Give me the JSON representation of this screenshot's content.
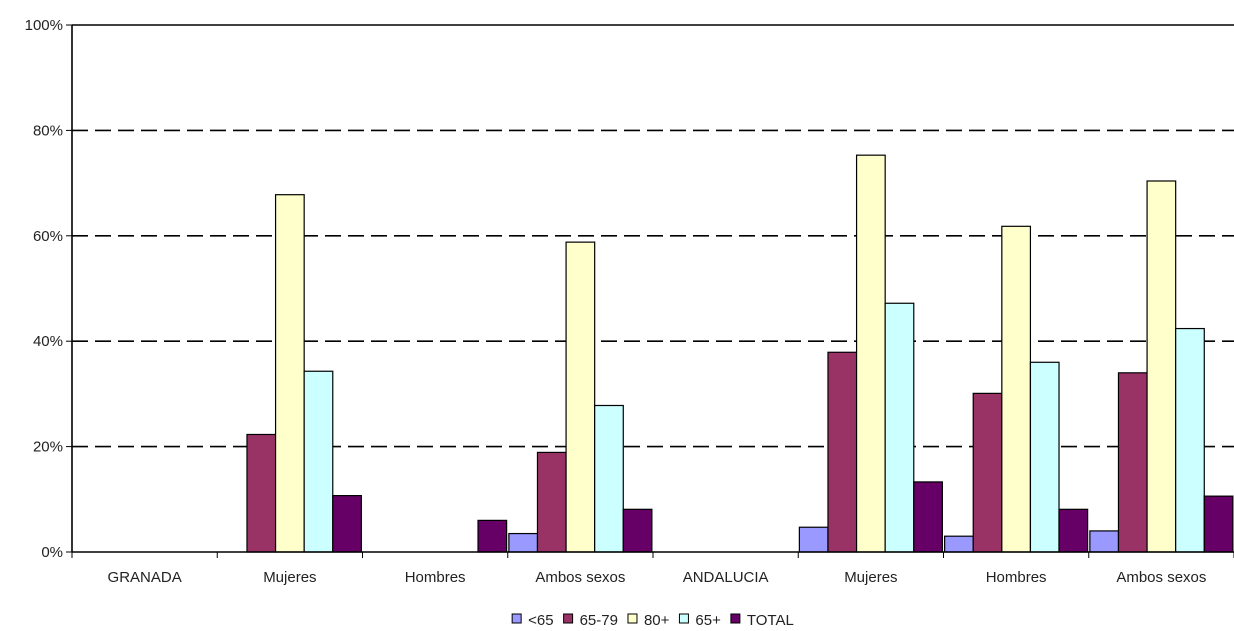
{
  "chart_data": {
    "type": "bar",
    "title": "",
    "xlabel": "",
    "ylabel": "",
    "ylim": [
      0,
      100
    ],
    "y_ticks": [
      "0%",
      "20%",
      "40%",
      "60%",
      "80%",
      "100%"
    ],
    "grid": "horizontal dashed",
    "legend_position": "bottom",
    "categories": [
      "GRANADA",
      "Mujeres",
      "Hombres",
      "Ambos sexos",
      "ANDALUCIA",
      "Mujeres",
      "Hombres",
      "Ambos sexos"
    ],
    "series": [
      {
        "name": "<65",
        "color": "#9999ff",
        "values": [
          0,
          0,
          0,
          3.5,
          0,
          4.7,
          3.0,
          4.0
        ]
      },
      {
        "name": "65-79",
        "color": "#993366",
        "values": [
          0,
          22.3,
          0,
          18.9,
          0,
          37.9,
          30.1,
          34.0
        ]
      },
      {
        "name": "80+",
        "color": "#ffffcc",
        "values": [
          0,
          67.8,
          0,
          58.8,
          0,
          75.3,
          61.8,
          70.4
        ]
      },
      {
        "name": "65+",
        "color": "#ccffff",
        "values": [
          0,
          34.3,
          0,
          27.8,
          0,
          47.2,
          36.0,
          42.4
        ]
      },
      {
        "name": "TOTAL",
        "color": "#660066",
        "values": [
          0,
          10.7,
          6.0,
          8.1,
          0,
          13.3,
          8.1,
          10.6
        ]
      }
    ]
  }
}
